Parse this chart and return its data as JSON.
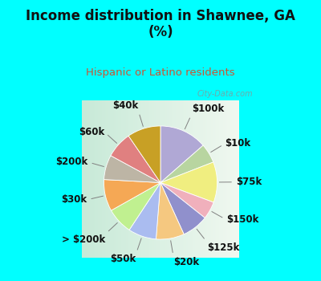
{
  "title": "Income distribution in Shawnee, GA\n(%)",
  "subtitle": "Hispanic or Latino residents",
  "title_color": "#111111",
  "subtitle_color": "#cc5533",
  "bg_top": "#00ffff",
  "bg_chart_left": "#c8ead8",
  "bg_chart_right": "#f0f8f0",
  "watermark": "© City-Data.com",
  "labels": [
    "$100k",
    "$10k",
    "$75k",
    "$150k",
    "$125k",
    "$20k",
    "$50k",
    "> $200k",
    "$30k",
    "$200k",
    "$60k",
    "$40k"
  ],
  "values": [
    13.5,
    5.5,
    11.5,
    5.0,
    7.5,
    8.0,
    8.0,
    7.5,
    9.0,
    7.0,
    7.5,
    9.5
  ],
  "colors": [
    "#b0a8d5",
    "#b8d5a0",
    "#f0ee80",
    "#f0b0bc",
    "#9090cc",
    "#f5c880",
    "#aabcf0",
    "#c0f090",
    "#f5a855",
    "#bdb5a5",
    "#e08080",
    "#c8a025"
  ],
  "label_fontsize": 8.5,
  "figsize": [
    4.0,
    3.5
  ],
  "dpi": 100,
  "title_fontsize": 12,
  "subtitle_fontsize": 9.5
}
